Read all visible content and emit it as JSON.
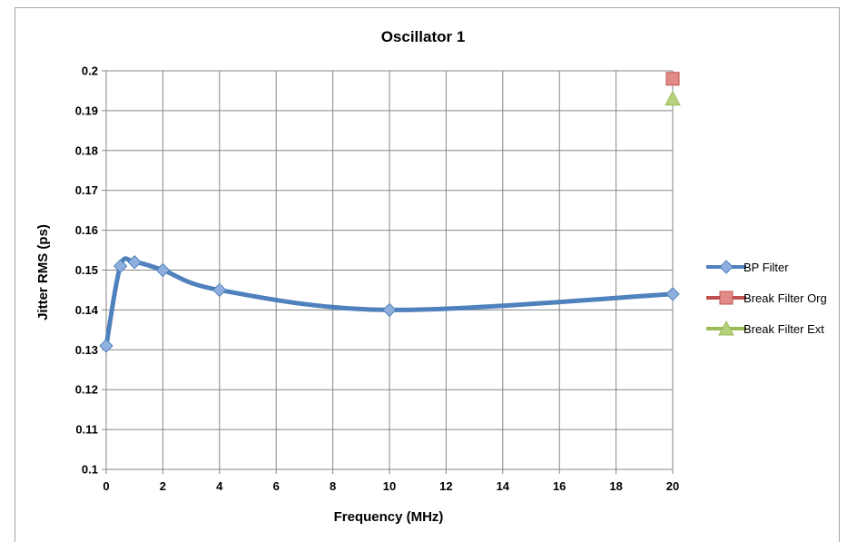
{
  "chart_data": {
    "type": "line",
    "title": "Oscillator 1",
    "xlabel": "Frequency (MHz)",
    "ylabel": "Jitter RMS (ps)",
    "xlim": [
      0,
      20
    ],
    "ylim": [
      0.1,
      0.2
    ],
    "x_ticks": [
      "0",
      "2",
      "4",
      "6",
      "8",
      "10",
      "12",
      "14",
      "16",
      "18",
      "20"
    ],
    "y_ticks": [
      "0.1",
      "0.11",
      "0.12",
      "0.13",
      "0.14",
      "0.15",
      "0.16",
      "0.17",
      "0.18",
      "0.19",
      "0.2"
    ],
    "grid": true,
    "legend_position": "right",
    "series": [
      {
        "name": "BP Filter",
        "color": "#4f81bd",
        "marker": "diamond",
        "smooth": true,
        "x": [
          0,
          0.5,
          1,
          2,
          4,
          10,
          20
        ],
        "y": [
          0.131,
          0.151,
          0.152,
          0.15,
          0.145,
          0.14,
          0.144
        ]
      },
      {
        "name": "Break Filter Org",
        "color": "#c0504d",
        "marker": "square",
        "x": [
          20
        ],
        "y": [
          0.198
        ]
      },
      {
        "name": "Break Filter Ext",
        "color": "#9bbb59",
        "marker": "triangle",
        "x": [
          20
        ],
        "y": [
          0.193
        ]
      }
    ]
  }
}
